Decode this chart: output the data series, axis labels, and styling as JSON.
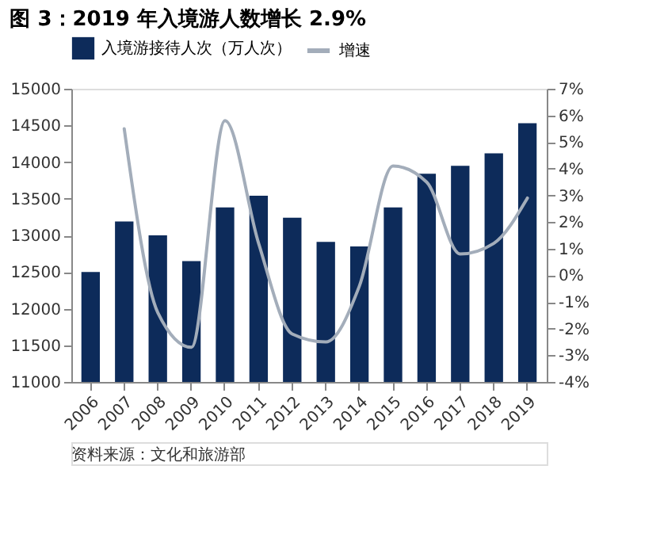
{
  "chart_data": {
    "type": "bar",
    "title": "图 3：2019 年入境游人数增长 2.9%",
    "categories": [
      "2006",
      "2007",
      "2008",
      "2009",
      "2010",
      "2011",
      "2012",
      "2013",
      "2014",
      "2015",
      "2016",
      "2017",
      "2018",
      "2019"
    ],
    "series": [
      {
        "name": "入境游接待人次（万人次）",
        "color": "#0d2b5a",
        "values": [
          12500,
          13190,
          13000,
          12650,
          13380,
          13540,
          13240,
          12910,
          12850,
          13380,
          13840,
          13950,
          14120,
          14530
        ]
      },
      {
        "name": "增速",
        "type": "line",
        "axis": "y2",
        "color": "#a3adba",
        "values": [
          null,
          5.5,
          -1.4,
          -2.7,
          5.8,
          1.2,
          -2.2,
          -2.5,
          -0.4,
          4.1,
          3.5,
          0.8,
          1.2,
          2.9
        ]
      }
    ],
    "ylim": [
      11000,
      15000
    ],
    "yticks": [
      11000,
      11500,
      12000,
      12500,
      13000,
      13500,
      14000,
      14500,
      15000
    ],
    "y2lim": [
      -4,
      7
    ],
    "y2ticks": [
      {
        "value": -4,
        "label": "-4%"
      },
      {
        "value": -3,
        "label": "-3%"
      },
      {
        "value": -2,
        "label": "-2%"
      },
      {
        "value": -1,
        "label": "-1%"
      },
      {
        "value": 0,
        "label": "0%"
      },
      {
        "value": 1,
        "label": "1%"
      },
      {
        "value": 2,
        "label": "2%"
      },
      {
        "value": 3,
        "label": "3%"
      },
      {
        "value": 4,
        "label": "4%"
      },
      {
        "value": 5,
        "label": "5%"
      },
      {
        "value": 6,
        "label": "6%"
      },
      {
        "value": 7,
        "label": "7%"
      }
    ],
    "legend": "top",
    "grid": false,
    "marker": "none",
    "line_style": "solid",
    "annotations": [
      "资料来源：文化和旅游部"
    ]
  }
}
